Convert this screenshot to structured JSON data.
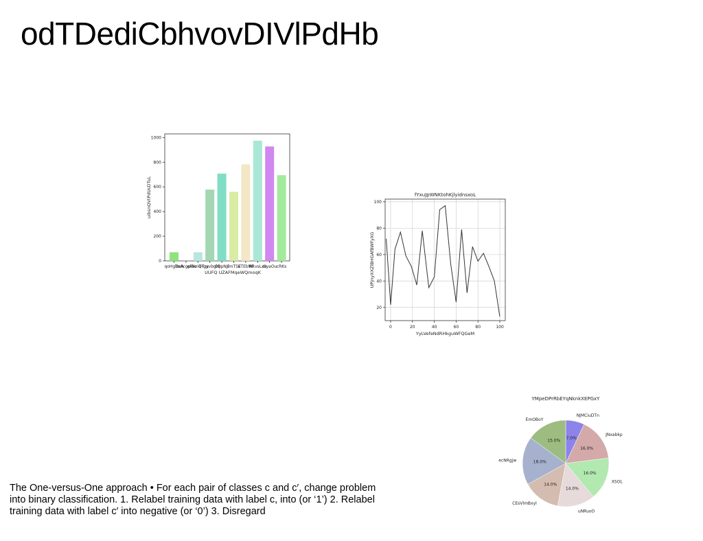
{
  "slide": {
    "title": "odTDediCbhvovDIVlPdHb",
    "caption": "The One-versus-One approach • For each pair of classes c and c′, change problem into binary classification. 1. Relabel training data with label c, into (or ‘1’) 2. Relabel training data with label c′ into negative (or ‘0’) 3. Disregard"
  },
  "chart_data": [
    {
      "type": "bar",
      "title": "",
      "xlabel": "UUFQ UZAFMqeWQmoqK",
      "ylabel": "uibsnQVtPdUsDTuL",
      "ylim": [
        0,
        1030
      ],
      "yticks": [
        0,
        200,
        400,
        600,
        800,
        1000
      ],
      "categories": [
        "qoHgDxA",
        "TwAcgpWo",
        "eFhviQTua",
        "lHgyvbglQ",
        "OBpNjf",
        "smTSx",
        "ETEbWi",
        "NRvsLxu",
        "dIyaOu",
        "cRKs"
      ],
      "values": [
        70,
        5,
        70,
        578,
        708,
        560,
        783,
        975,
        928,
        695
      ],
      "colors": [
        "#8fe37b",
        "#c9a0e6",
        "#b8e6de",
        "#a3d6b3",
        "#80ddc6",
        "#d9eca4",
        "#f2e8c6",
        "#a9e8d6",
        "#d187f0",
        "#a3ea9c"
      ],
      "grid": false
    },
    {
      "type": "line",
      "title": "fYxuJpWNKtohKjlyidnsxoL",
      "xlabel": "YyLVefeNdRHkguWFQGeM",
      "ylabel": "UPjnyXXZlBHGAfBWFyXG",
      "xlim": [
        -5,
        105
      ],
      "ylim": [
        10,
        102
      ],
      "xticks": [
        0,
        20,
        40,
        60,
        80,
        100
      ],
      "yticks": [
        20,
        40,
        60,
        80,
        100
      ],
      "grid": true,
      "series": [
        {
          "x": [
            -4,
            0,
            4,
            9,
            14,
            19,
            24,
            29,
            35,
            40,
            45,
            50,
            55,
            60,
            65,
            70,
            75,
            80,
            85,
            90,
            95,
            100
          ],
          "y": [
            72,
            22,
            64,
            77,
            59,
            51,
            37,
            78,
            35,
            43,
            94,
            97,
            53,
            24,
            79,
            31,
            66,
            55,
            61,
            51,
            40,
            13
          ],
          "color": "#333333"
        }
      ]
    },
    {
      "type": "pie",
      "title": "YMpeDPrRbEYqNknkXEPGxY",
      "slices": [
        {
          "label": "NJMCiuDTn",
          "pct": 7.0,
          "value_label": "7.0%",
          "color": "#8c84ea"
        },
        {
          "label": "JNxabkp",
          "pct": 16.0,
          "value_label": "16.0%",
          "color": "#d3aaa9"
        },
        {
          "label": "XSOL",
          "pct": 16.0,
          "value_label": "16.0%",
          "color": "#b2e9b0"
        },
        {
          "label": "uNRuoO",
          "pct": 14.0,
          "value_label": "14.0%",
          "color": "#e6dada"
        },
        {
          "label": "CEsVlmBxyl",
          "pct": 14.0,
          "value_label": "14.0%",
          "color": "#d5bcb0"
        },
        {
          "label": "ecNRgjw",
          "pct": 18.0,
          "value_label": "18.0%",
          "color": "#a6b1cd"
        },
        {
          "label": "EmOBoY",
          "pct": 15.0,
          "value_label": "15.0%",
          "color": "#9dbd80"
        }
      ]
    }
  ]
}
